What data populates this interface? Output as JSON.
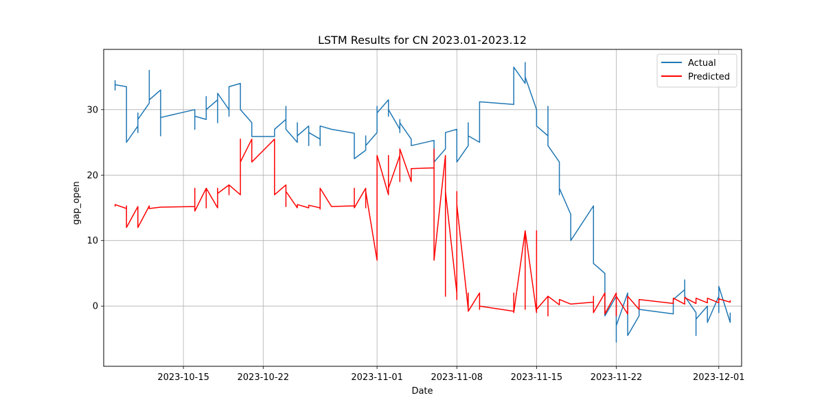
{
  "chart_data": {
    "type": "line",
    "title": "LSTM Results for CN 2023.01-2023.12",
    "xlabel": "Date",
    "ylabel": "gap_open",
    "x_range": [
      "2023-10-08",
      "2023-12-03"
    ],
    "ylim": [
      -9.2,
      39.2
    ],
    "x_ticks": [
      "2023-10-15",
      "2023-10-22",
      "2023-11-01",
      "2023-11-08",
      "2023-11-15",
      "2023-11-22",
      "2023-12-01"
    ],
    "y_ticks": [
      0,
      10,
      20,
      30
    ],
    "grid": true,
    "legend_position": "top-right",
    "series": [
      {
        "name": "Actual",
        "color": "#1f77b4",
        "points": [
          [
            "2023-10-09",
            34.5
          ],
          [
            "2023-10-09",
            33.0
          ],
          [
            "2023-10-09",
            33.8
          ],
          [
            "2023-10-10",
            33.5
          ],
          [
            "2023-10-10",
            30.0
          ],
          [
            "2023-10-10",
            29.0
          ],
          [
            "2023-10-10",
            27.2
          ],
          [
            "2023-10-10",
            25.0
          ],
          [
            "2023-10-11",
            27.5
          ],
          [
            "2023-10-11",
            29.5
          ],
          [
            "2023-10-11",
            26.5
          ],
          [
            "2023-10-11",
            28.5
          ],
          [
            "2023-10-12",
            31.0
          ],
          [
            "2023-10-12",
            33.0
          ],
          [
            "2023-10-12",
            34.0
          ],
          [
            "2023-10-12",
            36.0
          ],
          [
            "2023-10-12",
            31.5
          ],
          [
            "2023-10-13",
            33.0
          ],
          [
            "2023-10-13",
            26.0
          ],
          [
            "2023-10-13",
            28.8
          ],
          [
            "2023-10-16",
            30.0
          ],
          [
            "2023-10-16",
            27.0
          ],
          [
            "2023-10-16",
            29.0
          ],
          [
            "2023-10-17",
            28.5
          ],
          [
            "2023-10-17",
            32.0
          ],
          [
            "2023-10-17",
            30.0
          ],
          [
            "2023-10-18",
            31.5
          ],
          [
            "2023-10-18",
            28.0
          ],
          [
            "2023-10-18",
            32.5
          ],
          [
            "2023-10-19",
            30.0
          ],
          [
            "2023-10-19",
            31.5
          ],
          [
            "2023-10-19",
            29.0
          ],
          [
            "2023-10-19",
            33.5
          ],
          [
            "2023-10-20",
            34.0
          ],
          [
            "2023-10-20",
            31.0
          ],
          [
            "2023-10-20",
            32.0
          ],
          [
            "2023-10-20",
            30.0
          ],
          [
            "2023-10-21",
            28.0
          ],
          [
            "2023-10-21",
            26.5
          ],
          [
            "2023-10-21",
            25.9
          ],
          [
            "2023-10-23",
            25.9
          ],
          [
            "2023-10-23",
            26.0
          ],
          [
            "2023-10-23",
            27.0
          ],
          [
            "2023-10-24",
            28.5
          ],
          [
            "2023-10-24",
            27.5
          ],
          [
            "2023-10-24",
            30.5
          ],
          [
            "2023-10-24",
            27.0
          ],
          [
            "2023-10-25",
            25.0
          ],
          [
            "2023-10-25",
            28.0
          ],
          [
            "2023-10-25",
            26.0
          ],
          [
            "2023-10-26",
            27.5
          ],
          [
            "2023-10-26",
            24.5
          ],
          [
            "2023-10-26",
            26.5
          ],
          [
            "2023-10-27",
            25.5
          ],
          [
            "2023-10-27",
            27.0
          ],
          [
            "2023-10-27",
            24.5
          ],
          [
            "2023-10-27",
            26.0
          ],
          [
            "2023-10-27",
            27.5
          ],
          [
            "2023-10-28",
            27.0
          ],
          [
            "2023-10-30",
            26.4
          ],
          [
            "2023-10-30",
            24.0
          ],
          [
            "2023-10-30",
            22.5
          ],
          [
            "2023-10-31",
            23.8
          ],
          [
            "2023-10-31",
            25.0
          ],
          [
            "2023-10-31",
            26.0
          ],
          [
            "2023-10-31",
            24.5
          ],
          [
            "2023-11-01",
            26.5
          ],
          [
            "2023-11-01",
            29.0
          ],
          [
            "2023-11-01",
            30.5
          ],
          [
            "2023-11-01",
            29.5
          ],
          [
            "2023-11-02",
            31.5
          ],
          [
            "2023-11-02",
            29.0
          ],
          [
            "2023-11-02",
            30.0
          ],
          [
            "2023-11-03",
            27.0
          ],
          [
            "2023-11-03",
            28.5
          ],
          [
            "2023-11-03",
            26.5
          ],
          [
            "2023-11-03",
            28.0
          ],
          [
            "2023-11-04",
            25.5
          ],
          [
            "2023-11-04",
            24.5
          ],
          [
            "2023-11-06",
            25.3
          ],
          [
            "2023-11-06",
            23.0
          ],
          [
            "2023-11-06",
            22.0
          ],
          [
            "2023-11-07",
            24.0
          ],
          [
            "2023-11-07",
            25.5
          ],
          [
            "2023-11-07",
            26.5
          ],
          [
            "2023-11-08",
            27.0
          ],
          [
            "2023-11-08",
            24.5
          ],
          [
            "2023-11-08",
            23.0
          ],
          [
            "2023-11-08",
            22.0
          ],
          [
            "2023-11-09",
            24.5
          ],
          [
            "2023-11-09",
            26.5
          ],
          [
            "2023-11-09",
            28.0
          ],
          [
            "2023-11-09",
            26.0
          ],
          [
            "2023-11-10",
            25.0
          ],
          [
            "2023-11-10",
            26.8
          ],
          [
            "2023-11-10",
            27.5
          ],
          [
            "2023-11-10",
            29.0
          ],
          [
            "2023-11-10",
            31.2
          ],
          [
            "2023-11-13",
            30.8
          ],
          [
            "2023-11-13",
            33.0
          ],
          [
            "2023-11-13",
            35.0
          ],
          [
            "2023-11-13",
            36.5
          ],
          [
            "2023-11-14",
            34.0
          ],
          [
            "2023-11-14",
            35.5
          ],
          [
            "2023-11-14",
            37.2
          ],
          [
            "2023-11-14",
            35.0
          ],
          [
            "2023-11-15",
            30.0
          ],
          [
            "2023-11-15",
            28.5
          ],
          [
            "2023-11-15",
            29.5
          ],
          [
            "2023-11-15",
            27.5
          ],
          [
            "2023-11-16",
            26.0
          ],
          [
            "2023-11-16",
            28.5
          ],
          [
            "2023-11-16",
            30.5
          ],
          [
            "2023-11-16",
            27.0
          ],
          [
            "2023-11-16",
            24.5
          ],
          [
            "2023-11-17",
            22.0
          ],
          [
            "2023-11-17",
            18.5
          ],
          [
            "2023-11-17",
            17.0
          ],
          [
            "2023-11-17",
            18.0
          ],
          [
            "2023-11-18",
            14.0
          ],
          [
            "2023-11-18",
            12.0
          ],
          [
            "2023-11-18",
            10.0
          ],
          [
            "2023-11-20",
            15.3
          ],
          [
            "2023-11-20",
            12.0
          ],
          [
            "2023-11-20",
            8.0
          ],
          [
            "2023-11-20",
            6.5
          ],
          [
            "2023-11-21",
            5.0
          ],
          [
            "2023-11-21",
            2.0
          ],
          [
            "2023-11-21",
            0.5
          ],
          [
            "2023-11-21",
            -1.5
          ],
          [
            "2023-11-22",
            1.5
          ],
          [
            "2023-11-22",
            -2.0
          ],
          [
            "2023-11-22",
            -5.5
          ],
          [
            "2023-11-22",
            -3.0
          ],
          [
            "2023-11-23",
            2.0
          ],
          [
            "2023-11-23",
            -2.0
          ],
          [
            "2023-11-23",
            -4.5
          ],
          [
            "2023-11-24",
            -1.5
          ],
          [
            "2023-11-24",
            0.5
          ],
          [
            "2023-11-24",
            -0.5
          ],
          [
            "2023-11-27",
            -1.2
          ],
          [
            "2023-11-27",
            1.0
          ],
          [
            "2023-11-28",
            2.5
          ],
          [
            "2023-11-28",
            4.0
          ],
          [
            "2023-11-28",
            1.5
          ],
          [
            "2023-11-29",
            -1.0
          ],
          [
            "2023-11-29",
            -4.5
          ],
          [
            "2023-11-29",
            -2.0
          ],
          [
            "2023-11-30",
            0.0
          ],
          [
            "2023-11-30",
            -2.5
          ],
          [
            "2023-12-01",
            1.5
          ],
          [
            "2023-12-01",
            -1.0
          ],
          [
            "2023-12-01",
            3.0
          ],
          [
            "2023-12-02",
            -2.5
          ],
          [
            "2023-12-02",
            -1.0
          ]
        ]
      },
      {
        "name": "Predicted",
        "color": "#ff0000",
        "points": [
          [
            "2023-10-09",
            15.2
          ],
          [
            "2023-10-09",
            15.5
          ],
          [
            "2023-10-10",
            14.9
          ],
          [
            "2023-10-10",
            15.3
          ],
          [
            "2023-10-10",
            12.0
          ],
          [
            "2023-10-11",
            15.2
          ],
          [
            "2023-10-11",
            12.0
          ],
          [
            "2023-10-11",
            15.2
          ],
          [
            "2023-10-11",
            12.0
          ],
          [
            "2023-10-12",
            15.3
          ],
          [
            "2023-10-12",
            14.9
          ],
          [
            "2023-10-13",
            15.1
          ],
          [
            "2023-10-16",
            15.2
          ],
          [
            "2023-10-16",
            18.0
          ],
          [
            "2023-10-16",
            14.5
          ],
          [
            "2023-10-17",
            18.0
          ],
          [
            "2023-10-17",
            15.0
          ],
          [
            "2023-10-17",
            18.0
          ],
          [
            "2023-10-18",
            15.0
          ],
          [
            "2023-10-18",
            18.0
          ],
          [
            "2023-10-18",
            17.2
          ],
          [
            "2023-10-19",
            18.5
          ],
          [
            "2023-10-19",
            17.0
          ],
          [
            "2023-10-19",
            18.5
          ],
          [
            "2023-10-20",
            17.0
          ],
          [
            "2023-10-20",
            18.2
          ],
          [
            "2023-10-20",
            17.5
          ],
          [
            "2023-10-20",
            25.5
          ],
          [
            "2023-10-20",
            22.0
          ],
          [
            "2023-10-21",
            25.5
          ],
          [
            "2023-10-21",
            22.0
          ],
          [
            "2023-10-23",
            25.5
          ],
          [
            "2023-10-23",
            19.0
          ],
          [
            "2023-10-23",
            17.0
          ],
          [
            "2023-10-24",
            18.5
          ],
          [
            "2023-10-24",
            15.2
          ],
          [
            "2023-10-24",
            17.5
          ],
          [
            "2023-10-25",
            15.0
          ],
          [
            "2023-10-25",
            15.5
          ],
          [
            "2023-10-26",
            15.0
          ],
          [
            "2023-10-26",
            15.4
          ],
          [
            "2023-10-27",
            15.0
          ],
          [
            "2023-10-27",
            18.0
          ],
          [
            "2023-10-27",
            14.8
          ],
          [
            "2023-10-27",
            18.0
          ],
          [
            "2023-10-28",
            15.2
          ],
          [
            "2023-10-30",
            15.3
          ],
          [
            "2023-10-30",
            18.0
          ],
          [
            "2023-10-30",
            15.0
          ],
          [
            "2023-10-31",
            18.0
          ],
          [
            "2023-10-31",
            15.0
          ],
          [
            "2023-10-31",
            17.5
          ],
          [
            "2023-11-01",
            7.0
          ],
          [
            "2023-11-01",
            23.0
          ],
          [
            "2023-11-01",
            7.0
          ],
          [
            "2023-11-01",
            23.0
          ],
          [
            "2023-11-02",
            17.0
          ],
          [
            "2023-11-02",
            23.0
          ],
          [
            "2023-11-02",
            18.0
          ],
          [
            "2023-11-03",
            23.0
          ],
          [
            "2023-11-03",
            19.0
          ],
          [
            "2023-11-03",
            24.0
          ],
          [
            "2023-11-04",
            19.0
          ],
          [
            "2023-11-04",
            21.0
          ],
          [
            "2023-11-06",
            21.1
          ],
          [
            "2023-11-06",
            24.0
          ],
          [
            "2023-11-06",
            7.0
          ],
          [
            "2023-11-07",
            23.0
          ],
          [
            "2023-11-07",
            1.5
          ],
          [
            "2023-11-07",
            17.5
          ],
          [
            "2023-11-08",
            2.0
          ],
          [
            "2023-11-08",
            17.5
          ],
          [
            "2023-11-08",
            1.0
          ],
          [
            "2023-11-08",
            15.5
          ],
          [
            "2023-11-09",
            -0.5
          ],
          [
            "2023-11-09",
            2.0
          ],
          [
            "2023-11-09",
            -0.8
          ],
          [
            "2023-11-10",
            2.0
          ],
          [
            "2023-11-10",
            -0.5
          ],
          [
            "2023-11-10",
            0.0
          ],
          [
            "2023-11-13",
            -0.8
          ],
          [
            "2023-11-13",
            2.0
          ],
          [
            "2023-11-13",
            -1.0
          ],
          [
            "2023-11-14",
            11.5
          ],
          [
            "2023-11-14",
            -0.5
          ],
          [
            "2023-11-14",
            11.5
          ],
          [
            "2023-11-15",
            -1.0
          ],
          [
            "2023-11-15",
            11.5
          ],
          [
            "2023-11-15",
            -0.5
          ],
          [
            "2023-11-16",
            1.5
          ],
          [
            "2023-11-16",
            -1.5
          ],
          [
            "2023-11-16",
            1.5
          ],
          [
            "2023-11-17",
            0.2
          ],
          [
            "2023-11-17",
            1.0
          ],
          [
            "2023-11-18",
            0.3
          ],
          [
            "2023-11-20",
            0.6
          ],
          [
            "2023-11-20",
            1.5
          ],
          [
            "2023-11-20",
            -1.0
          ],
          [
            "2023-11-21",
            2.0
          ],
          [
            "2023-11-21",
            -1.2
          ],
          [
            "2023-11-22",
            2.0
          ],
          [
            "2023-11-22",
            -1.5
          ],
          [
            "2023-11-22",
            1.5
          ],
          [
            "2023-11-23",
            -1.2
          ],
          [
            "2023-11-23",
            1.5
          ],
          [
            "2023-11-24",
            -0.5
          ],
          [
            "2023-11-24",
            1.0
          ],
          [
            "2023-11-27",
            0.4
          ],
          [
            "2023-11-27",
            1.2
          ],
          [
            "2023-11-28",
            0.3
          ],
          [
            "2023-11-28",
            1.3
          ],
          [
            "2023-11-29",
            0.4
          ],
          [
            "2023-11-29",
            1.2
          ],
          [
            "2023-11-30",
            0.5
          ],
          [
            "2023-11-30",
            1.2
          ],
          [
            "2023-12-01",
            0.5
          ],
          [
            "2023-12-01",
            1.1
          ],
          [
            "2023-12-02",
            0.6
          ],
          [
            "2023-12-02",
            0.9
          ]
        ]
      }
    ]
  }
}
